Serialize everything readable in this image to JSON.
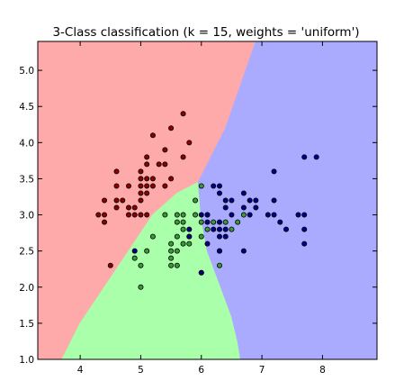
{
  "chart_data": {
    "type": "scatter",
    "title": "3-Class classification (k = 15, weights = 'uniform')",
    "xlabel": "",
    "ylabel": "",
    "xlim": [
      3.3,
      8.9
    ],
    "ylim": [
      1.0,
      5.4
    ],
    "xticks": [
      "4",
      "5",
      "6",
      "7",
      "8"
    ],
    "yticks": [
      "1.0",
      "1.5",
      "2.0",
      "2.5",
      "3.0",
      "3.5",
      "4.0",
      "4.5",
      "5.0"
    ],
    "grid": false,
    "legend": "none",
    "colors": {
      "region_red": "#ffaaaa",
      "region_green": "#aaffaa",
      "region_blue": "#aaaaff",
      "point_red": "#8b0000",
      "point_green": "#3a9a3a",
      "point_blue": "#000088"
    },
    "regions": [
      {
        "class": "red",
        "boundary": [
          [
            3.3,
            1.0
          ],
          [
            3.7,
            1.0
          ],
          [
            4.0,
            1.5
          ],
          [
            4.4,
            2.0
          ],
          [
            4.8,
            2.5
          ],
          [
            5.2,
            3.0
          ],
          [
            5.6,
            3.3
          ],
          [
            5.95,
            3.45
          ],
          [
            6.4,
            4.2
          ],
          [
            6.9,
            5.4
          ],
          [
            3.3,
            5.4
          ]
        ]
      },
      {
        "class": "green",
        "boundary": [
          [
            3.7,
            1.0
          ],
          [
            6.65,
            1.0
          ],
          [
            6.6,
            1.25
          ],
          [
            6.5,
            1.6
          ],
          [
            6.3,
            2.05
          ],
          [
            6.1,
            2.5
          ],
          [
            6.0,
            2.95
          ],
          [
            5.95,
            3.45
          ],
          [
            5.6,
            3.3
          ],
          [
            5.2,
            3.0
          ],
          [
            4.8,
            2.5
          ],
          [
            4.4,
            2.0
          ],
          [
            4.0,
            1.5
          ]
        ]
      },
      {
        "class": "blue",
        "boundary": [
          [
            6.65,
            1.0
          ],
          [
            8.9,
            1.0
          ],
          [
            8.9,
            5.4
          ],
          [
            6.9,
            5.4
          ],
          [
            6.4,
            4.2
          ],
          [
            5.95,
            3.45
          ],
          [
            6.0,
            2.95
          ],
          [
            6.1,
            2.5
          ],
          [
            6.3,
            2.05
          ],
          [
            6.5,
            1.6
          ],
          [
            6.6,
            1.25
          ]
        ]
      }
    ],
    "series": [
      {
        "name": "",
        "class": "red",
        "points": [
          [
            4.3,
            3.0
          ],
          [
            4.4,
            2.9
          ],
          [
            4.4,
            3.0
          ],
          [
            4.4,
            3.2
          ],
          [
            4.5,
            2.3
          ],
          [
            4.6,
            3.1
          ],
          [
            4.6,
            3.2
          ],
          [
            4.6,
            3.4
          ],
          [
            4.6,
            3.6
          ],
          [
            4.7,
            3.2
          ],
          [
            4.8,
            3.0
          ],
          [
            4.8,
            3.1
          ],
          [
            4.8,
            3.4
          ],
          [
            4.9,
            3.0
          ],
          [
            4.9,
            3.1
          ],
          [
            5.0,
            3.0
          ],
          [
            5.0,
            3.2
          ],
          [
            5.0,
            3.3
          ],
          [
            5.0,
            3.4
          ],
          [
            5.0,
            3.5
          ],
          [
            5.0,
            3.6
          ],
          [
            5.1,
            3.3
          ],
          [
            5.1,
            3.4
          ],
          [
            5.1,
            3.5
          ],
          [
            5.1,
            3.7
          ],
          [
            5.1,
            3.8
          ],
          [
            5.2,
            3.4
          ],
          [
            5.2,
            3.5
          ],
          [
            5.2,
            4.1
          ],
          [
            5.3,
            3.7
          ],
          [
            5.4,
            3.4
          ],
          [
            5.4,
            3.7
          ],
          [
            5.4,
            3.9
          ],
          [
            5.5,
            3.5
          ],
          [
            5.5,
            4.2
          ],
          [
            5.7,
            3.8
          ],
          [
            5.7,
            4.4
          ],
          [
            5.8,
            4.0
          ],
          [
            5.1,
            3.0
          ]
        ]
      },
      {
        "name": "",
        "class": "green",
        "points": [
          [
            4.9,
            2.4
          ],
          [
            5.0,
            2.0
          ],
          [
            5.0,
            2.3
          ],
          [
            5.1,
            2.5
          ],
          [
            5.2,
            2.7
          ],
          [
            5.4,
            3.0
          ],
          [
            5.5,
            2.3
          ],
          [
            5.5,
            2.4
          ],
          [
            5.5,
            2.5
          ],
          [
            5.5,
            2.6
          ],
          [
            5.6,
            2.5
          ],
          [
            5.6,
            2.7
          ],
          [
            5.6,
            2.9
          ],
          [
            5.6,
            3.0
          ],
          [
            5.7,
            2.6
          ],
          [
            5.7,
            2.8
          ],
          [
            5.7,
            2.9
          ],
          [
            5.7,
            3.0
          ],
          [
            5.8,
            2.7
          ],
          [
            5.9,
            3.0
          ],
          [
            5.9,
            3.2
          ],
          [
            6.0,
            2.2
          ],
          [
            6.0,
            2.7
          ],
          [
            6.0,
            2.9
          ],
          [
            6.0,
            3.4
          ],
          [
            6.1,
            2.8
          ],
          [
            6.1,
            3.0
          ],
          [
            6.2,
            2.9
          ],
          [
            6.3,
            2.3
          ],
          [
            6.3,
            2.5
          ],
          [
            6.4,
            2.9
          ],
          [
            6.5,
            2.8
          ],
          [
            6.6,
            2.9
          ],
          [
            6.7,
            3.0
          ],
          [
            5.6,
            2.3
          ],
          [
            5.8,
            2.6
          ]
        ]
      },
      {
        "name": "",
        "class": "blue",
        "points": [
          [
            4.9,
            2.5
          ],
          [
            5.8,
            2.7
          ],
          [
            5.8,
            2.8
          ],
          [
            6.0,
            2.2
          ],
          [
            6.1,
            2.6
          ],
          [
            6.1,
            3.0
          ],
          [
            6.2,
            2.8
          ],
          [
            6.2,
            3.4
          ],
          [
            6.3,
            2.5
          ],
          [
            6.3,
            2.7
          ],
          [
            6.3,
            2.8
          ],
          [
            6.3,
            2.9
          ],
          [
            6.3,
            3.3
          ],
          [
            6.3,
            3.4
          ],
          [
            6.4,
            2.7
          ],
          [
            6.4,
            2.8
          ],
          [
            6.4,
            3.1
          ],
          [
            6.4,
            3.2
          ],
          [
            6.5,
            3.0
          ],
          [
            6.5,
            3.2
          ],
          [
            6.7,
            2.5
          ],
          [
            6.7,
            3.1
          ],
          [
            6.7,
            3.3
          ],
          [
            6.8,
            3.0
          ],
          [
            6.8,
            3.2
          ],
          [
            6.9,
            3.1
          ],
          [
            6.9,
            3.2
          ],
          [
            7.1,
            3.0
          ],
          [
            7.2,
            3.0
          ],
          [
            7.2,
            3.2
          ],
          [
            7.2,
            3.6
          ],
          [
            7.3,
            2.9
          ],
          [
            7.4,
            2.8
          ],
          [
            7.6,
            3.0
          ],
          [
            7.7,
            2.6
          ],
          [
            7.7,
            2.8
          ],
          [
            7.7,
            3.0
          ],
          [
            7.7,
            3.8
          ],
          [
            7.9,
            3.8
          ],
          [
            6.0,
            3.0
          ],
          [
            6.1,
            2.9
          ]
        ]
      }
    ]
  }
}
